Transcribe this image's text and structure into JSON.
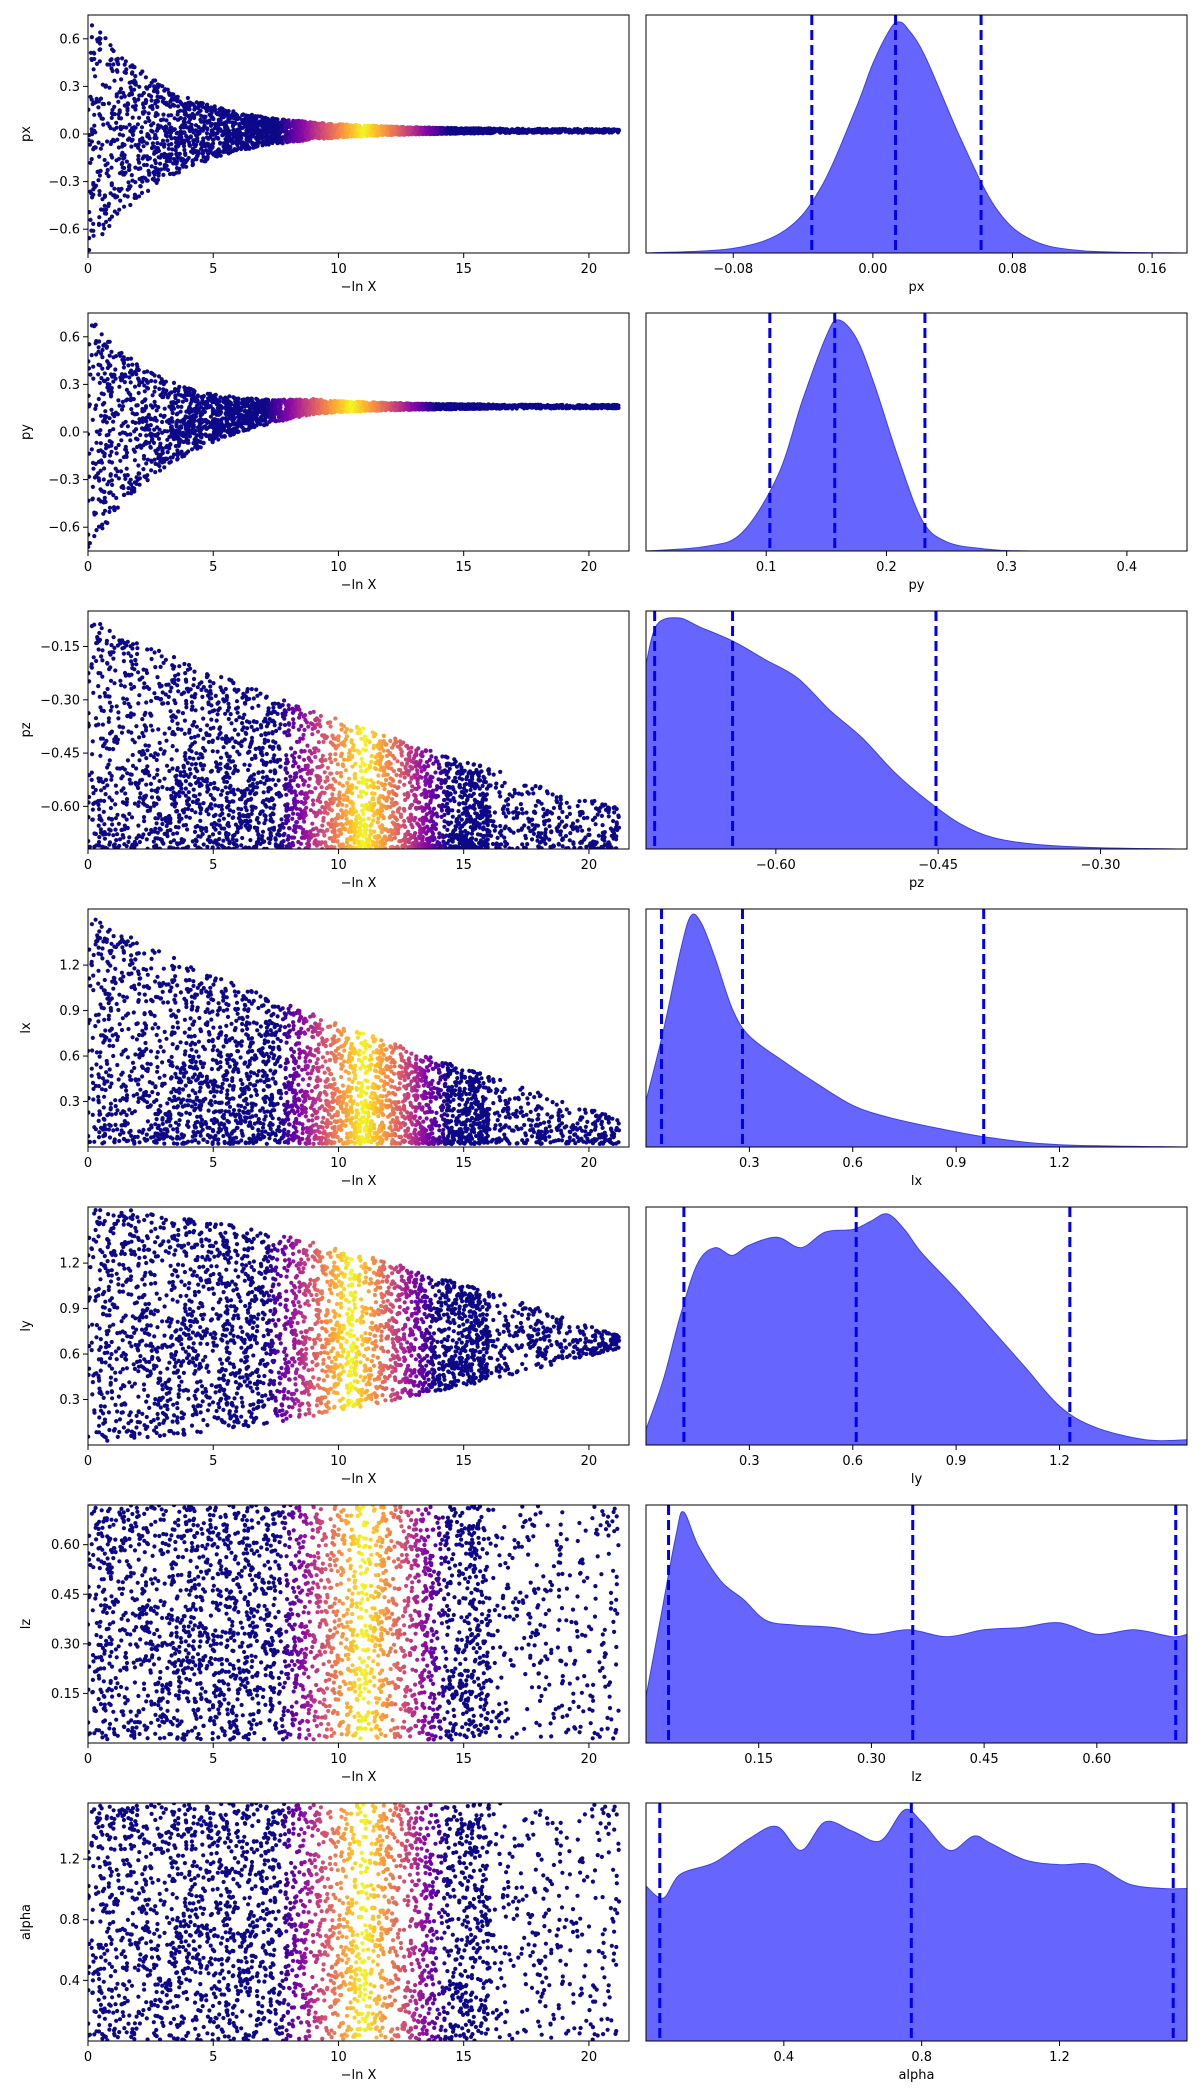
{
  "chart_data": [
    {
      "type": "scatter",
      "xlabel": "−ln X",
      "ylabel": "px",
      "xlim": [
        0,
        21.6
      ],
      "ylim": [
        -0.75,
        0.75
      ],
      "xticks": [
        0,
        5,
        10,
        15,
        20
      ],
      "xtick_labels": [
        "0",
        "5",
        "10",
        "15",
        "20"
      ],
      "yticks": [
        -0.6,
        -0.3,
        0.0,
        0.3,
        0.6
      ],
      "ytick_labels": [
        "−0.6",
        "−0.3",
        "0.0",
        "0.3",
        "0.6"
      ],
      "colormap": "plasma",
      "envelope": {
        "center_start": 0.0,
        "center_end": 0.02,
        "half_width_at_0": 0.75,
        "converge_x": 21,
        "growth": 3.2
      },
      "color_peak_x": 11.0
    },
    {
      "type": "area",
      "xlabel": "px",
      "xlim": [
        -0.13,
        0.18
      ],
      "xticks": [
        -0.08,
        0.0,
        0.08,
        0.16
      ],
      "xtick_labels": [
        "−0.08",
        "0.00",
        "0.08",
        "0.16"
      ],
      "x": [
        -0.13,
        -0.08,
        -0.05,
        -0.03,
        -0.01,
        0.0,
        0.01,
        0.015,
        0.02,
        0.03,
        0.05,
        0.07,
        0.09,
        0.12,
        0.18
      ],
      "density": [
        0.0,
        0.02,
        0.1,
        0.28,
        0.62,
        0.82,
        0.97,
        1.0,
        0.97,
        0.85,
        0.5,
        0.2,
        0.06,
        0.01,
        0.0
      ],
      "quantiles": [
        -0.035,
        0.013,
        0.062
      ]
    },
    {
      "type": "scatter",
      "xlabel": "−ln X",
      "ylabel": "py",
      "xlim": [
        0,
        21.6
      ],
      "ylim": [
        -0.75,
        0.75
      ],
      "xticks": [
        0,
        5,
        10,
        15,
        20
      ],
      "xtick_labels": [
        "0",
        "5",
        "10",
        "15",
        "20"
      ],
      "yticks": [
        -0.6,
        -0.3,
        0.0,
        0.3,
        0.6
      ],
      "ytick_labels": [
        "−0.6",
        "−0.3",
        "0.0",
        "0.3",
        "0.6"
      ],
      "colormap": "plasma",
      "envelope": {
        "center_start": 0.0,
        "center_end": 0.16,
        "half_width_at_0": 0.75,
        "converge_x": 21,
        "growth": 3.0
      },
      "color_peak_x": 10.5
    },
    {
      "type": "area",
      "xlabel": "py",
      "xlim": [
        0.0,
        0.45
      ],
      "xticks": [
        0.1,
        0.2,
        0.3,
        0.4
      ],
      "xtick_labels": [
        "0.1",
        "0.2",
        "0.3",
        "0.4"
      ],
      "x": [
        0.0,
        0.05,
        0.08,
        0.11,
        0.13,
        0.15,
        0.16,
        0.175,
        0.19,
        0.21,
        0.23,
        0.25,
        0.28,
        0.32,
        0.45
      ],
      "density": [
        0.0,
        0.02,
        0.08,
        0.33,
        0.65,
        0.93,
        1.0,
        0.92,
        0.72,
        0.4,
        0.13,
        0.04,
        0.01,
        0.0,
        0.0
      ],
      "quantiles": [
        0.103,
        0.157,
        0.232
      ]
    },
    {
      "type": "scatter",
      "xlabel": "−ln X",
      "ylabel": "pz",
      "xlim": [
        0,
        21.6
      ],
      "ylim": [
        -0.72,
        -0.05
      ],
      "xticks": [
        0,
        5,
        10,
        15,
        20
      ],
      "xtick_labels": [
        "0",
        "5",
        "10",
        "15",
        "20"
      ],
      "yticks": [
        -0.6,
        -0.45,
        -0.3,
        -0.15
      ],
      "ytick_labels": [
        "−0.60",
        "−0.45",
        "−0.30",
        "−0.15"
      ],
      "colormap": "plasma",
      "wedge": {
        "floor": -0.72,
        "top_at_0": -0.05,
        "top_at_end": -0.6,
        "end_x": 21
      },
      "color_peak_x": 11.0
    },
    {
      "type": "area",
      "xlabel": "pz",
      "xlim": [
        -0.72,
        -0.22
      ],
      "xticks": [
        -0.6,
        -0.45,
        -0.3
      ],
      "xtick_labels": [
        "−0.60",
        "−0.45",
        "−0.30"
      ],
      "x": [
        -0.72,
        -0.71,
        -0.69,
        -0.67,
        -0.64,
        -0.61,
        -0.58,
        -0.55,
        -0.52,
        -0.49,
        -0.46,
        -0.43,
        -0.4,
        -0.36,
        -0.3,
        -0.22
      ],
      "density": [
        0.8,
        0.97,
        1.0,
        0.96,
        0.9,
        0.82,
        0.74,
        0.6,
        0.48,
        0.33,
        0.21,
        0.11,
        0.05,
        0.02,
        0.005,
        0.0
      ],
      "quantiles": [
        -0.712,
        -0.64,
        -0.452
      ]
    },
    {
      "type": "scatter",
      "xlabel": "−ln X",
      "ylabel": "lx",
      "xlim": [
        0,
        21.6
      ],
      "ylim": [
        0.0,
        1.57
      ],
      "xticks": [
        0,
        5,
        10,
        15,
        20
      ],
      "xtick_labels": [
        "0",
        "5",
        "10",
        "15",
        "20"
      ],
      "yticks": [
        0.3,
        0.6,
        0.9,
        1.2
      ],
      "ytick_labels": [
        "0.3",
        "0.6",
        "0.9",
        "1.2"
      ],
      "colormap": "plasma",
      "wedge": {
        "floor": 0.02,
        "top_at_0": 1.57,
        "top_at_end": 0.2,
        "end_x": 21
      },
      "color_peak_x": 11.0
    },
    {
      "type": "area",
      "xlabel": "lx",
      "xlim": [
        0.0,
        1.57
      ],
      "xticks": [
        0.3,
        0.6,
        0.9,
        1.2
      ],
      "xtick_labels": [
        "0.3",
        "0.6",
        "0.9",
        "1.2"
      ],
      "x": [
        0.0,
        0.05,
        0.1,
        0.13,
        0.16,
        0.2,
        0.25,
        0.3,
        0.4,
        0.5,
        0.6,
        0.7,
        0.85,
        1.0,
        1.2,
        1.57
      ],
      "density": [
        0.2,
        0.5,
        0.85,
        1.0,
        0.97,
        0.82,
        0.6,
        0.48,
        0.37,
        0.27,
        0.18,
        0.13,
        0.08,
        0.04,
        0.01,
        0.0
      ],
      "quantiles": [
        0.045,
        0.28,
        0.98
      ]
    },
    {
      "type": "scatter",
      "xlabel": "−ln X",
      "ylabel": "ly",
      "xlim": [
        0,
        21.6
      ],
      "ylim": [
        0.0,
        1.57
      ],
      "xticks": [
        0,
        5,
        10,
        15,
        20
      ],
      "xtick_labels": [
        "0",
        "5",
        "10",
        "15",
        "20"
      ],
      "yticks": [
        0.3,
        0.6,
        0.9,
        1.2
      ],
      "ytick_labels": [
        "0.3",
        "0.6",
        "0.9",
        "1.2"
      ],
      "colormap": "plasma",
      "funnel": {
        "bottom_at_0": 0.02,
        "top_at_0": 1.57,
        "center_end": 0.68,
        "end_x": 21
      },
      "color_peak_x": 10.5
    },
    {
      "type": "area",
      "xlabel": "ly",
      "xlim": [
        0.0,
        1.57
      ],
      "xticks": [
        0.3,
        0.6,
        0.9,
        1.2
      ],
      "xtick_labels": [
        "0.3",
        "0.6",
        "0.9",
        "1.2"
      ],
      "x": [
        0.0,
        0.05,
        0.1,
        0.15,
        0.2,
        0.25,
        0.3,
        0.38,
        0.45,
        0.52,
        0.6,
        0.65,
        0.7,
        0.75,
        0.8,
        0.9,
        1.0,
        1.1,
        1.2,
        1.3,
        1.45,
        1.57
      ],
      "density": [
        0.06,
        0.25,
        0.5,
        0.7,
        0.76,
        0.73,
        0.77,
        0.8,
        0.76,
        0.82,
        0.83,
        0.86,
        0.89,
        0.83,
        0.74,
        0.6,
        0.45,
        0.3,
        0.15,
        0.07,
        0.02,
        0.02
      ],
      "quantiles": [
        0.11,
        0.61,
        1.23
      ]
    },
    {
      "type": "scatter",
      "xlabel": "−ln X",
      "ylabel": "lz",
      "xlim": [
        0,
        21.6
      ],
      "ylim": [
        0.0,
        0.72
      ],
      "xticks": [
        0,
        5,
        10,
        15,
        20
      ],
      "xtick_labels": [
        "0",
        "5",
        "10",
        "15",
        "20"
      ],
      "yticks": [
        0.15,
        0.3,
        0.45,
        0.6
      ],
      "ytick_labels": [
        "0.15",
        "0.30",
        "0.45",
        "0.60"
      ],
      "colormap": "plasma",
      "band": {
        "bottom": 0.01,
        "top": 0.72,
        "end_x": 21
      },
      "color_peak_x": 11.0
    },
    {
      "type": "area",
      "xlabel": "lz",
      "xlim": [
        0.0,
        0.72
      ],
      "xticks": [
        0.15,
        0.3,
        0.45,
        0.6
      ],
      "xtick_labels": [
        "0.15",
        "0.30",
        "0.45",
        "0.60"
      ],
      "x": [
        0.0,
        0.02,
        0.04,
        0.05,
        0.07,
        0.1,
        0.13,
        0.16,
        0.2,
        0.25,
        0.3,
        0.35,
        0.4,
        0.45,
        0.5,
        0.55,
        0.6,
        0.65,
        0.7,
        0.72
      ],
      "density": [
        0.2,
        0.55,
        0.9,
        1.0,
        0.85,
        0.7,
        0.62,
        0.53,
        0.51,
        0.5,
        0.47,
        0.49,
        0.46,
        0.49,
        0.5,
        0.52,
        0.47,
        0.49,
        0.46,
        0.47
      ],
      "quantiles": [
        0.03,
        0.355,
        0.705
      ]
    },
    {
      "type": "scatter",
      "xlabel": "−ln X",
      "ylabel": "alpha",
      "xlim": [
        0,
        21.6
      ],
      "ylim": [
        0.0,
        1.57
      ],
      "xticks": [
        0,
        5,
        10,
        15,
        20
      ],
      "xtick_labels": [
        "0",
        "5",
        "10",
        "15",
        "20"
      ],
      "yticks": [
        0.4,
        0.8,
        1.2
      ],
      "ytick_labels": [
        "0.4",
        "0.8",
        "1.2"
      ],
      "colormap": "plasma",
      "band": {
        "bottom": 0.0,
        "top": 1.57,
        "end_x": 21
      },
      "color_peak_x": 11.0
    },
    {
      "type": "area",
      "xlabel": "alpha",
      "xlim": [
        0.0,
        1.57
      ],
      "xticks": [
        0.4,
        0.8,
        1.2
      ],
      "xtick_labels": [
        "0.4",
        "0.8",
        "1.2"
      ],
      "x": [
        0.0,
        0.05,
        0.1,
        0.2,
        0.3,
        0.38,
        0.45,
        0.52,
        0.6,
        0.68,
        0.75,
        0.8,
        0.88,
        0.95,
        1.0,
        1.1,
        1.2,
        1.3,
        1.4,
        1.5,
        1.57
      ],
      "density": [
        0.65,
        0.6,
        0.7,
        0.75,
        0.85,
        0.9,
        0.8,
        0.92,
        0.88,
        0.84,
        0.97,
        0.92,
        0.8,
        0.86,
        0.83,
        0.76,
        0.74,
        0.74,
        0.66,
        0.64,
        0.64
      ],
      "quantiles": [
        0.04,
        0.77,
        1.53
      ]
    }
  ]
}
